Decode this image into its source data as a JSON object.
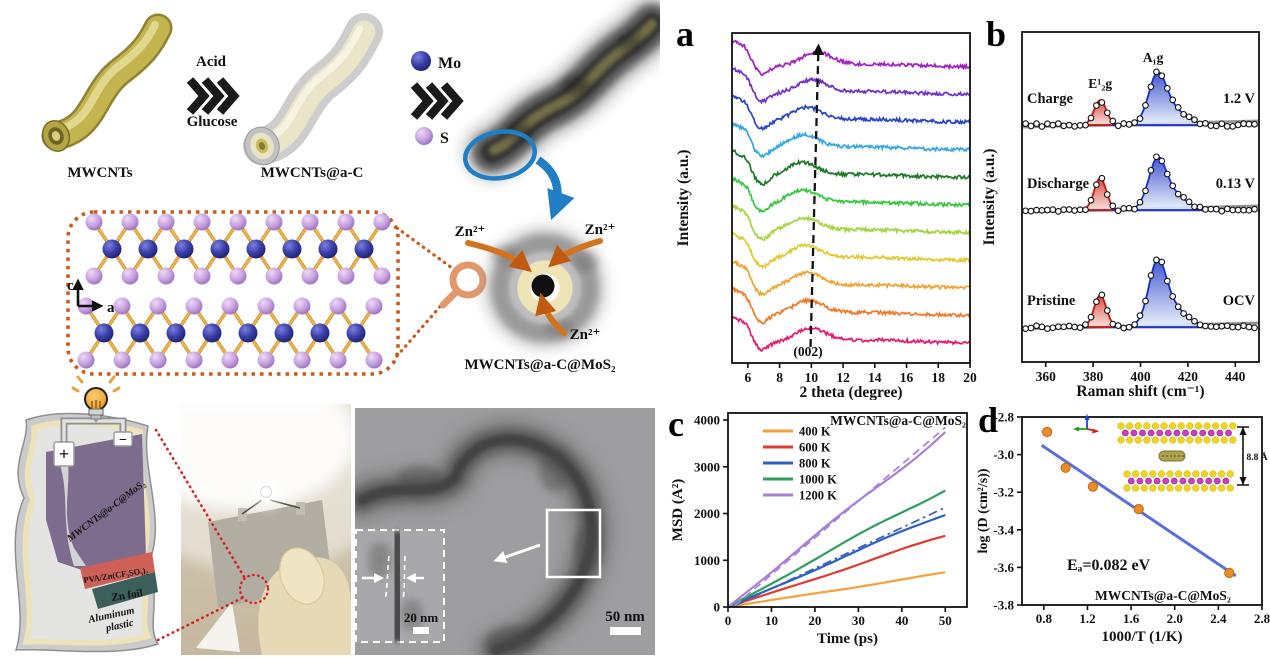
{
  "panels": {
    "a": "a",
    "b": "b",
    "c": "c",
    "d": "d"
  },
  "schematic": {
    "steps": {
      "mwcnts_label": "MWCNTs",
      "arrow1_top": "Acid",
      "arrow1_bottom": "Glucose",
      "mwcnts_ac_label": "MWCNTs@a-C",
      "arrow2_top": "Mo",
      "arrow2_bottom": "S",
      "product_label": "MWCNTs@a-C@MoS₂"
    },
    "legend": {
      "mo_color": "#2B2F8E",
      "s_color": "#BE8FD6"
    },
    "crystal_axes": {
      "vertical": "c",
      "horizontal": "a"
    },
    "zn_ion_labels": [
      "Zn²⁺",
      "Zn²⁺",
      "Zn²⁺"
    ],
    "battery": {
      "plus": "+",
      "minus": "−",
      "layers": [
        "MWCNTs@a-C@MoS₂",
        "PVA/Zn(CF₃SO₃)₂",
        "Zn foil",
        "Aluminum plastic"
      ]
    },
    "tem": {
      "scale_main": "50 nm",
      "scale_inset": "20 nm"
    }
  },
  "chart_data": [
    {
      "id": "a",
      "type": "line",
      "variant": "xrd-stack",
      "panel_label": "a",
      "title": "",
      "xlabel": "2 theta (degree)",
      "ylabel": "Intensity (a.u.)",
      "xlim": [
        5,
        20
      ],
      "xticks": [
        6,
        8,
        10,
        12,
        14,
        16,
        18,
        20
      ],
      "annotation": "(002)",
      "description": "Eleven stacked in-situ XRD scans; broad (002) reflection near 9.4-10.4 degrees, dashed arrow marks upward peak shift from bottom to top scan",
      "curves": [
        {
          "color": "#E8186D",
          "peak_center": 9.95
        },
        {
          "color": "#F07828",
          "peak_center": 9.8
        },
        {
          "color": "#EDA32E",
          "peak_center": 9.7
        },
        {
          "color": "#E2C832",
          "peak_center": 9.6
        },
        {
          "color": "#A6D23C",
          "peak_center": 9.5
        },
        {
          "color": "#35C83E",
          "peak_center": 9.45
        },
        {
          "color": "#1E7A28",
          "peak_center": 9.4
        },
        {
          "color": "#32A8E0",
          "peak_center": 9.5
        },
        {
          "color": "#2843C8",
          "peak_center": 9.7
        },
        {
          "color": "#7130C8",
          "peak_center": 10.0
        },
        {
          "color": "#A21FC4",
          "peak_center": 10.3
        }
      ],
      "arrow": {
        "from_x": 9.95,
        "to_x": 10.45
      }
    },
    {
      "id": "b",
      "type": "line",
      "variant": "raman-stack",
      "panel_label": "b",
      "xlabel": "Raman shift (cm⁻¹)",
      "ylabel": "Intensity (a.u.)",
      "xlim": [
        350,
        450
      ],
      "xticks": [
        360,
        380,
        400,
        420,
        440
      ],
      "peak_labels": [
        {
          "text": "E¹₂g",
          "x": 383
        },
        {
          "text": "A₁g",
          "x": 407
        }
      ],
      "peak_positions": {
        "e2g": 383,
        "a1g": 407
      },
      "fill_colors": {
        "e2g": "#D6352B",
        "a1g": "#2038C8"
      },
      "spectra": [
        {
          "name": "Charge",
          "state_label": "1.2 V",
          "e2g_amp": 25,
          "a1g_amp": 50
        },
        {
          "name": "Discharge",
          "state_label": "0.13 V",
          "e2g_amp": 32,
          "a1g_amp": 50
        },
        {
          "name": "Pristine",
          "state_label": "OCV",
          "e2g_amp": 32,
          "a1g_amp": 64
        }
      ]
    },
    {
      "id": "c",
      "type": "line",
      "variant": "msd",
      "panel_label": "c",
      "title": "MWCNTs@a-C@MoS₂",
      "xlabel": "Time (ps)",
      "ylabel": "MSD (A²)",
      "xlim": [
        0,
        55
      ],
      "ylim": [
        0,
        4150
      ],
      "xticks": [
        0,
        10,
        20,
        30,
        40,
        50
      ],
      "yticks": [
        0,
        1000,
        2000,
        3000,
        4000
      ],
      "legend_position": "top-left",
      "series": [
        {
          "name": "400 K",
          "color": "#F5A13A",
          "msd_at_50ps": 730
        },
        {
          "name": "600 K",
          "color": "#E03A30",
          "msd_at_50ps": 1520
        },
        {
          "name": "800 K",
          "color": "#3060C0",
          "msd_at_50ps": 2000,
          "fit_msd_at_50ps": 2130,
          "fit_dash": "dashdot"
        },
        {
          "name": "1000 K",
          "color": "#2E9E5B",
          "msd_at_50ps": 2540
        },
        {
          "name": "1200 K",
          "color": "#A880D8",
          "msd_at_50ps": 3760,
          "fit_msd_at_50ps": 3840,
          "fit_dash": "dash"
        }
      ]
    },
    {
      "id": "d",
      "type": "scatter",
      "variant": "arrhenius",
      "panel_label": "d",
      "xlabel": "1000/T (1/K)",
      "ylabel": "log (D (cm²/s))",
      "xlim": [
        0.6,
        2.8
      ],
      "ylim": [
        -3.8,
        -2.8
      ],
      "xticks": [
        0.8,
        1.2,
        1.6,
        2.0,
        2.4,
        2.8
      ],
      "xtick_labels": [
        "0.8",
        "1.2",
        "1.6",
        "2.0",
        "2.4",
        "2.8"
      ],
      "yticks": [
        -2.8,
        -3.0,
        -3.2,
        -3.4,
        -3.6,
        -3.8
      ],
      "ytick_labels": [
        "-2.8",
        "-3.0",
        "-3.2",
        "-3.4",
        "-3.6",
        "-3.8"
      ],
      "points": [
        [
          0.83,
          -2.88
        ],
        [
          1.0,
          -3.07
        ],
        [
          1.25,
          -3.17
        ],
        [
          1.67,
          -3.29
        ],
        [
          2.5,
          -3.63
        ]
      ],
      "point_color": "#F08A24",
      "fit_line": {
        "x1": 0.78,
        "y1": -2.95,
        "x2": 2.56,
        "y2": -3.645,
        "color": "#5B6FD8"
      },
      "activation_energy_label": "Eₐ=0.082 eV",
      "sample_label": "MWCNTs@a-C@MoS₂",
      "inset": {
        "interlayer_spacing_label": "8.8 Å",
        "s_color": "#EDD61F",
        "mo_color": "#CC3FC2"
      }
    }
  ]
}
